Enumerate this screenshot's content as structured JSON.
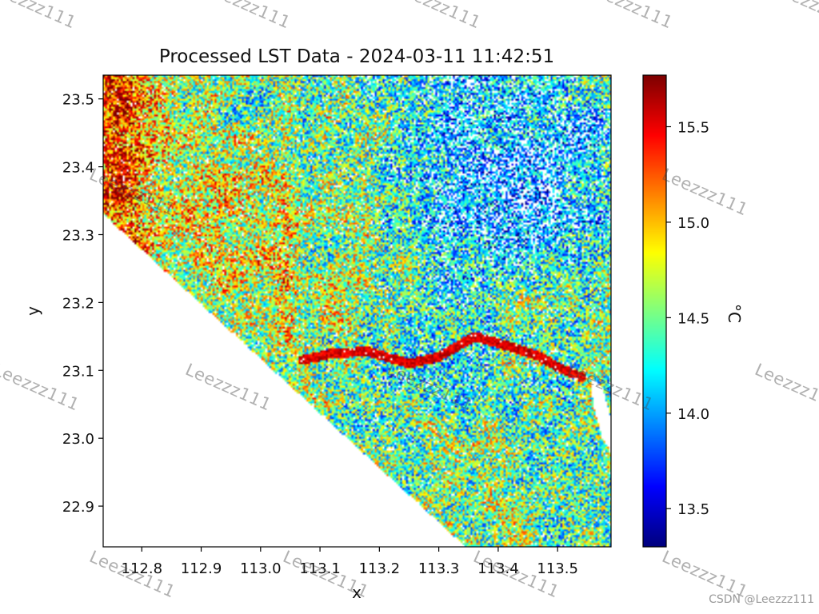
{
  "chart_data": {
    "type": "heatmap",
    "title": "Processed LST Data - 2024-03-11 11:42:51",
    "xlabel": "x",
    "ylabel": "y",
    "xlim": [
      112.735,
      113.59
    ],
    "ylim": [
      22.84,
      23.535
    ],
    "x_ticks": [
      112.8,
      112.9,
      113.0,
      113.1,
      113.2,
      113.3,
      113.4,
      113.5
    ],
    "x_tick_labels": [
      "112.8",
      "112.9",
      "113.0",
      "113.1",
      "113.2",
      "113.3",
      "113.4",
      "113.5"
    ],
    "y_ticks": [
      22.9,
      23.0,
      23.1,
      23.2,
      23.3,
      23.4,
      23.5
    ],
    "y_tick_labels": [
      "22.9",
      "23.0",
      "23.1",
      "23.2",
      "23.3",
      "23.4",
      "23.5"
    ],
    "colormap": "jet",
    "colorbar": {
      "label": "°C",
      "range": [
        13.3,
        15.77
      ],
      "ticks": [
        13.5,
        14.0,
        14.5,
        15.0,
        15.5
      ],
      "tick_labels": [
        "13.5",
        "14.0",
        "14.5",
        "15.0",
        "15.5"
      ]
    },
    "no_data_boundary": [
      [
        112.735,
        23.33
      ],
      [
        113.345,
        22.84
      ]
    ],
    "river_channel": [
      [
        113.07,
        23.115
      ],
      [
        113.12,
        23.125
      ],
      [
        113.18,
        23.128
      ],
      [
        113.25,
        23.11
      ],
      [
        113.3,
        23.12
      ],
      [
        113.36,
        23.15
      ],
      [
        113.42,
        23.135
      ],
      [
        113.47,
        23.12
      ],
      [
        113.5,
        23.105
      ],
      [
        113.54,
        23.09
      ]
    ],
    "water_body": [
      [
        113.555,
        23.09
      ],
      [
        113.575,
        23.075
      ],
      [
        113.59,
        23.03
      ],
      [
        113.59,
        22.98
      ],
      [
        113.575,
        23.0
      ],
      [
        113.56,
        23.05
      ],
      [
        113.555,
        23.09
      ]
    ],
    "regions": {
      "warm": [
        113.0,
        23.3,
        0.2,
        0.18
      ],
      "cool": [
        113.4,
        23.4,
        0.2,
        0.15
      ]
    }
  },
  "watermark": "Leezzz111",
  "credit": "CSDN @Leezzz111"
}
